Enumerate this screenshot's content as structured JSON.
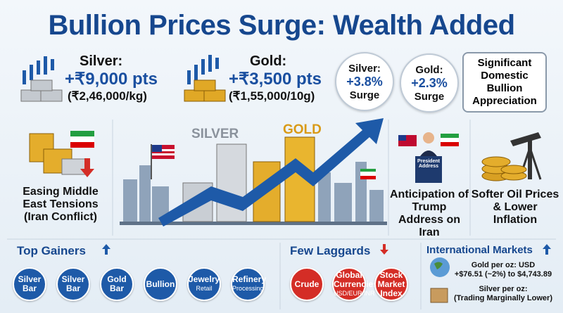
{
  "title": "Bullion Prices Surge: Wealth Added",
  "prices": [
    {
      "label": "Silver:",
      "change": "+₹9,000 pts",
      "price": "(₹2,46,000/kg)"
    },
    {
      "label": "Gold:",
      "change": "+₹3,500 pts",
      "price": "(₹1,55,000/10g)"
    }
  ],
  "surges": [
    {
      "label": "Silver:",
      "value": "+3.8%",
      "text": "Surge"
    },
    {
      "label": "Gold:",
      "value": "+2.3%",
      "text": "Surge"
    }
  ],
  "highlight": "Significant Domestic Bullion Appreciation",
  "drivers": [
    "Easing Middle East Tensions (Iran Conflict)",
    "Anticipation of Trump Address on Iran",
    "Softer Oil Prices & Lower Inflation"
  ],
  "illustration": {
    "silver_label": "SILVER",
    "gold_label": "GOLD",
    "podium": "President Address"
  },
  "top_gainers": {
    "title": "Top Gainers",
    "items": [
      {
        "name": "Silver Bar"
      },
      {
        "name": "Silver Bar"
      },
      {
        "name": "Gold Bar"
      },
      {
        "name": "Bullion"
      },
      {
        "name": "Jewelry",
        "detail": "Retail"
      },
      {
        "name": "Refinery",
        "detail": "Processing"
      }
    ]
  },
  "laggards": {
    "title": "Few Laggards",
    "items": [
      {
        "name": "Crude"
      },
      {
        "name": "Global Currencies",
        "detail": "USD/EUR/INR"
      },
      {
        "name": "Stock Market Index"
      }
    ]
  },
  "international": {
    "title": "International Markets",
    "gold_label": "Gold per oz: USD",
    "gold_detail": "+$76.51 (~2%) to $4,743.89",
    "silver_label": "Silver per oz:",
    "silver_detail": "(Trading Marginally Lower)"
  }
}
